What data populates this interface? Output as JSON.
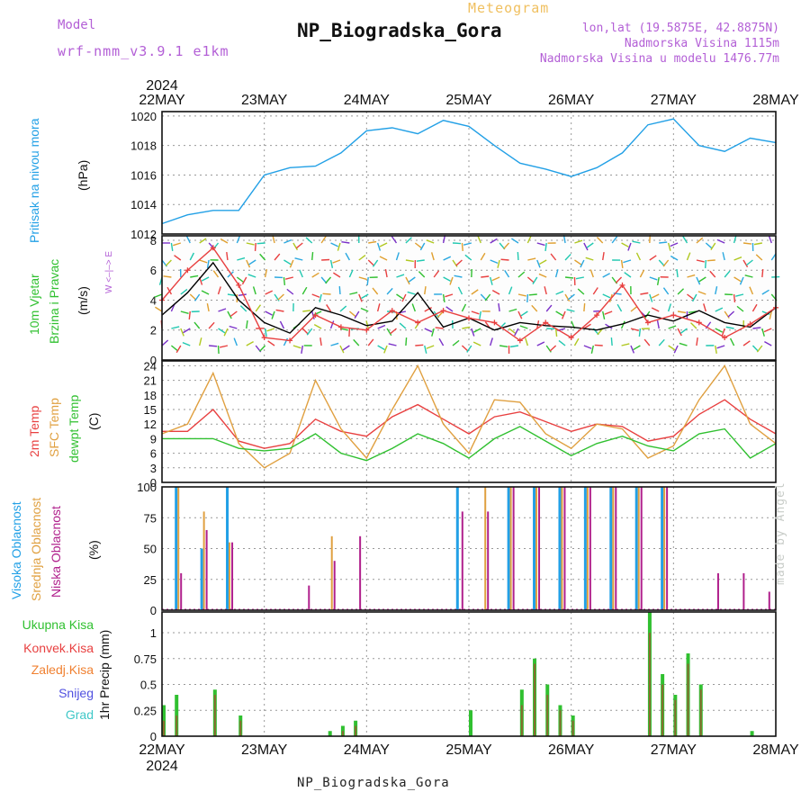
{
  "header": {
    "model_label": "Model",
    "model_version": "wrf-nmm_v3.9.1 e1km",
    "meteogram_label": "Meteogram",
    "title": "NP_Biogradska_Gora",
    "location": "lon,lat (19.5875E, 42.8875N)",
    "altitude": "Nadmorska Visina 1115m",
    "model_altitude": "Nadmorska Visina u modelu 1476.77m"
  },
  "footer": {
    "station": "NP_Biogradska_Gora",
    "credit": "made by Angel"
  },
  "time_axis": {
    "year": "2024",
    "ticks": [
      "22MAY",
      "23MAY",
      "24MAY",
      "25MAY",
      "26MAY",
      "27MAY",
      "28MAY"
    ]
  },
  "panels": {
    "pressure": {
      "label": "Pritisak na nivou mora",
      "unit": "(hPa)",
      "ticks": [
        "1012",
        "1014",
        "1016",
        "1018",
        "1020"
      ]
    },
    "wind": {
      "label_1": "10m Vjetar",
      "label_2": "Brzina i Pravac",
      "unit": "(m/s)",
      "ticks": [
        "0",
        "2",
        "4",
        "6",
        "8"
      ],
      "compass": "W  <–|–>  E"
    },
    "temp": {
      "label_1": "2m Temp",
      "label_2": "SFC Temp",
      "label_3": "dewpt Temp",
      "unit": "(C)",
      "ticks": [
        "0",
        "3",
        "6",
        "9",
        "12",
        "15",
        "18",
        "21",
        "24"
      ]
    },
    "cloud": {
      "label_1": "Visoka Oblacnost",
      "label_2": "Srednja Oblacnost",
      "label_3": "Niska Oblacnost",
      "unit": "(%)",
      "ticks": [
        "0",
        "25",
        "50",
        "75",
        "100"
      ]
    },
    "precip": {
      "label": "1hr Precip (mm)",
      "legend": [
        "Ukupna Kisa",
        "Konvek.Kisa",
        "Zaledj.Kisa",
        "Snijeg",
        "Grad"
      ],
      "ticks": [
        "0",
        "0.25",
        "0.5",
        "0.75",
        "1"
      ]
    }
  },
  "colors": {
    "pressure": "#22a0e6",
    "wind_speed": "#000000",
    "wind_gust": "#e84040",
    "t2m": "#e84040",
    "tsfc": "#e0a040",
    "dewpt": "#30c030",
    "cloud_high": "#22a0e6",
    "cloud_mid": "#e0a040",
    "cloud_low": "#b0208c",
    "rain_total": "#30c030",
    "rain_conv": "#e84040",
    "rain_freeze": "#f08030",
    "snow": "#5050e0",
    "hail": "#40c8c8",
    "label_pressure": "#22a0e6",
    "label_wind": "#30c030",
    "label_cloud_high": "#22a0e6"
  },
  "chart_data": [
    {
      "type": "line",
      "title": "Pritisak na nivou mora",
      "ylabel": "(hPa)",
      "ylim": [
        1012,
        1020.3
      ],
      "x_hours": [
        0,
        6,
        12,
        18,
        24,
        30,
        36,
        42,
        48,
        54,
        60,
        66,
        72,
        78,
        84,
        90,
        96,
        102,
        108,
        114,
        120,
        126,
        132,
        138,
        144
      ],
      "series": [
        {
          "values": [
            1012.7,
            1013.3,
            1013.6,
            1013.6,
            1016.0,
            1016.5,
            1016.6,
            1017.5,
            1019.0,
            1019.2,
            1018.8,
            1019.7,
            1019.3,
            1018.0,
            1016.8,
            1016.4,
            1015.9,
            1016.5,
            1017.5,
            1019.4,
            1019.8,
            1018.0,
            1017.6,
            1018.5,
            1018.2
          ]
        }
      ]
    },
    {
      "type": "line",
      "title": "10m Vjetar Brzina i Pravac",
      "ylabel": "(m/s)",
      "ylim": [
        0,
        8.3
      ],
      "x_hours": [
        0,
        6,
        12,
        18,
        24,
        30,
        36,
        42,
        48,
        54,
        60,
        66,
        72,
        78,
        84,
        90,
        96,
        102,
        108,
        114,
        120,
        126,
        132,
        138,
        144
      ],
      "series": [
        {
          "values": [
            3.0,
            4.5,
            6.5,
            4.0,
            2.5,
            1.8,
            3.5,
            3.0,
            2.3,
            2.6,
            4.5,
            2.2,
            2.8,
            2.0,
            2.5,
            2.3,
            2.2,
            2.0,
            2.4,
            3.0,
            2.6,
            3.3,
            2.5,
            2.2,
            3.5
          ]
        },
        {
          "values": [
            4.0,
            6.0,
            7.5,
            5.0,
            1.5,
            1.3,
            3.0,
            2.2,
            2.0,
            3.3,
            2.5,
            3.3,
            2.8,
            2.5,
            1.3,
            2.5,
            1.5,
            3.0,
            5.0,
            2.5,
            3.0,
            2.5,
            1.5,
            2.4,
            3.5
          ]
        }
      ]
    },
    {
      "type": "line",
      "title": "2m Temp / SFC Temp / dewpt Temp",
      "ylabel": "(C)",
      "ylim": [
        0,
        25
      ],
      "x_hours": [
        0,
        6,
        12,
        18,
        24,
        30,
        36,
        42,
        48,
        54,
        60,
        66,
        72,
        78,
        84,
        90,
        96,
        102,
        108,
        114,
        120,
        126,
        132,
        138,
        144
      ],
      "series": [
        {
          "values": [
            10.5,
            10.5,
            15.0,
            8.5,
            7.0,
            8.0,
            13.0,
            10.5,
            9.5,
            13.5,
            16.0,
            13.0,
            10.0,
            13.5,
            14.5,
            12.5,
            10.5,
            12.0,
            11.5,
            8.5,
            9.5,
            14.0,
            17.0,
            13.0,
            10.0
          ]
        },
        {
          "values": [
            10.0,
            12.0,
            22.5,
            8.0,
            3.0,
            6.0,
            21.0,
            11.0,
            5.0,
            15.0,
            24.0,
            12.0,
            6.0,
            17.0,
            16.5,
            10.0,
            7.0,
            12.0,
            11.0,
            5.0,
            7.5,
            17.0,
            24.0,
            12.0,
            8.0
          ]
        },
        {
          "values": [
            9.0,
            9.0,
            9.0,
            7.0,
            6.5,
            7.0,
            10.0,
            6.0,
            4.5,
            7.0,
            10.0,
            8.0,
            5.0,
            9.0,
            11.5,
            8.5,
            5.5,
            8.0,
            9.5,
            7.5,
            6.5,
            10.0,
            11.0,
            5.0,
            8.0
          ]
        }
      ]
    },
    {
      "type": "bar",
      "title": "Visoka / Srednja / Niska Oblacnost",
      "ylabel": "(%)",
      "ylim": [
        0,
        100
      ],
      "x_hours": [
        3,
        9,
        15,
        21,
        33,
        39,
        45,
        51,
        57,
        63,
        69,
        75,
        81,
        87,
        93,
        99,
        105,
        111,
        117,
        123,
        129,
        135,
        141
      ],
      "series": [
        {
          "values": [
            100,
            50,
            100,
            0,
            0,
            0,
            0,
            0,
            0,
            0,
            100,
            0,
            100,
            100,
            100,
            100,
            100,
            100,
            100,
            0,
            0,
            0,
            0
          ]
        },
        {
          "values": [
            100,
            80,
            55,
            0,
            0,
            60,
            0,
            0,
            0,
            0,
            0,
            100,
            100,
            100,
            100,
            100,
            100,
            100,
            100,
            0,
            0,
            0,
            0
          ]
        },
        {
          "values": [
            30,
            65,
            55,
            0,
            20,
            40,
            60,
            0,
            0,
            0,
            80,
            80,
            100,
            100,
            100,
            100,
            100,
            100,
            100,
            0,
            30,
            30,
            15
          ]
        }
      ]
    },
    {
      "type": "bar",
      "title": "1hr Precip",
      "ylabel": "(mm)",
      "ylim": [
        0,
        1.2
      ],
      "x_hours": [
        0,
        3,
        6,
        9,
        12,
        15,
        18,
        21,
        24,
        27,
        30,
        33,
        36,
        39,
        42,
        45,
        48,
        51,
        54,
        57,
        60,
        63,
        66,
        69,
        72,
        75,
        78,
        81,
        84,
        87,
        90,
        93,
        96,
        99,
        102,
        105,
        108,
        111,
        114,
        117,
        120,
        123,
        126,
        129,
        132,
        135,
        138,
        141
      ],
      "series": [
        {
          "values": [
            0.3,
            0.4,
            0.0,
            0.0,
            0.45,
            0.0,
            0.2,
            0.0,
            0.0,
            0.0,
            0.0,
            0.0,
            0.0,
            0.05,
            0.1,
            0.15,
            0.0,
            0.0,
            0.0,
            0.0,
            0.0,
            0.0,
            0.0,
            0.0,
            0.25,
            0.0,
            0.0,
            0.0,
            0.45,
            0.75,
            0.5,
            0.3,
            0.2,
            0.0,
            0.0,
            0.0,
            0.0,
            0.0,
            1.2,
            0.6,
            0.4,
            0.8,
            0.5,
            0.0,
            0.0,
            0.0,
            0.05,
            0.0
          ]
        },
        {
          "values": [
            0.15,
            0.2,
            0.0,
            0.0,
            0.4,
            0.0,
            0.15,
            0.0,
            0.0,
            0.0,
            0.0,
            0.0,
            0.0,
            0.0,
            0.05,
            0.1,
            0.0,
            0.0,
            0.0,
            0.0,
            0.0,
            0.0,
            0.0,
            0.0,
            0.0,
            0.0,
            0.0,
            0.0,
            0.3,
            0.7,
            0.4,
            0.25,
            0.15,
            0.0,
            0.0,
            0.0,
            0.0,
            0.0,
            1.0,
            0.5,
            0.35,
            0.7,
            0.45,
            0.0,
            0.0,
            0.0,
            0.0,
            0.0
          ]
        }
      ]
    }
  ]
}
